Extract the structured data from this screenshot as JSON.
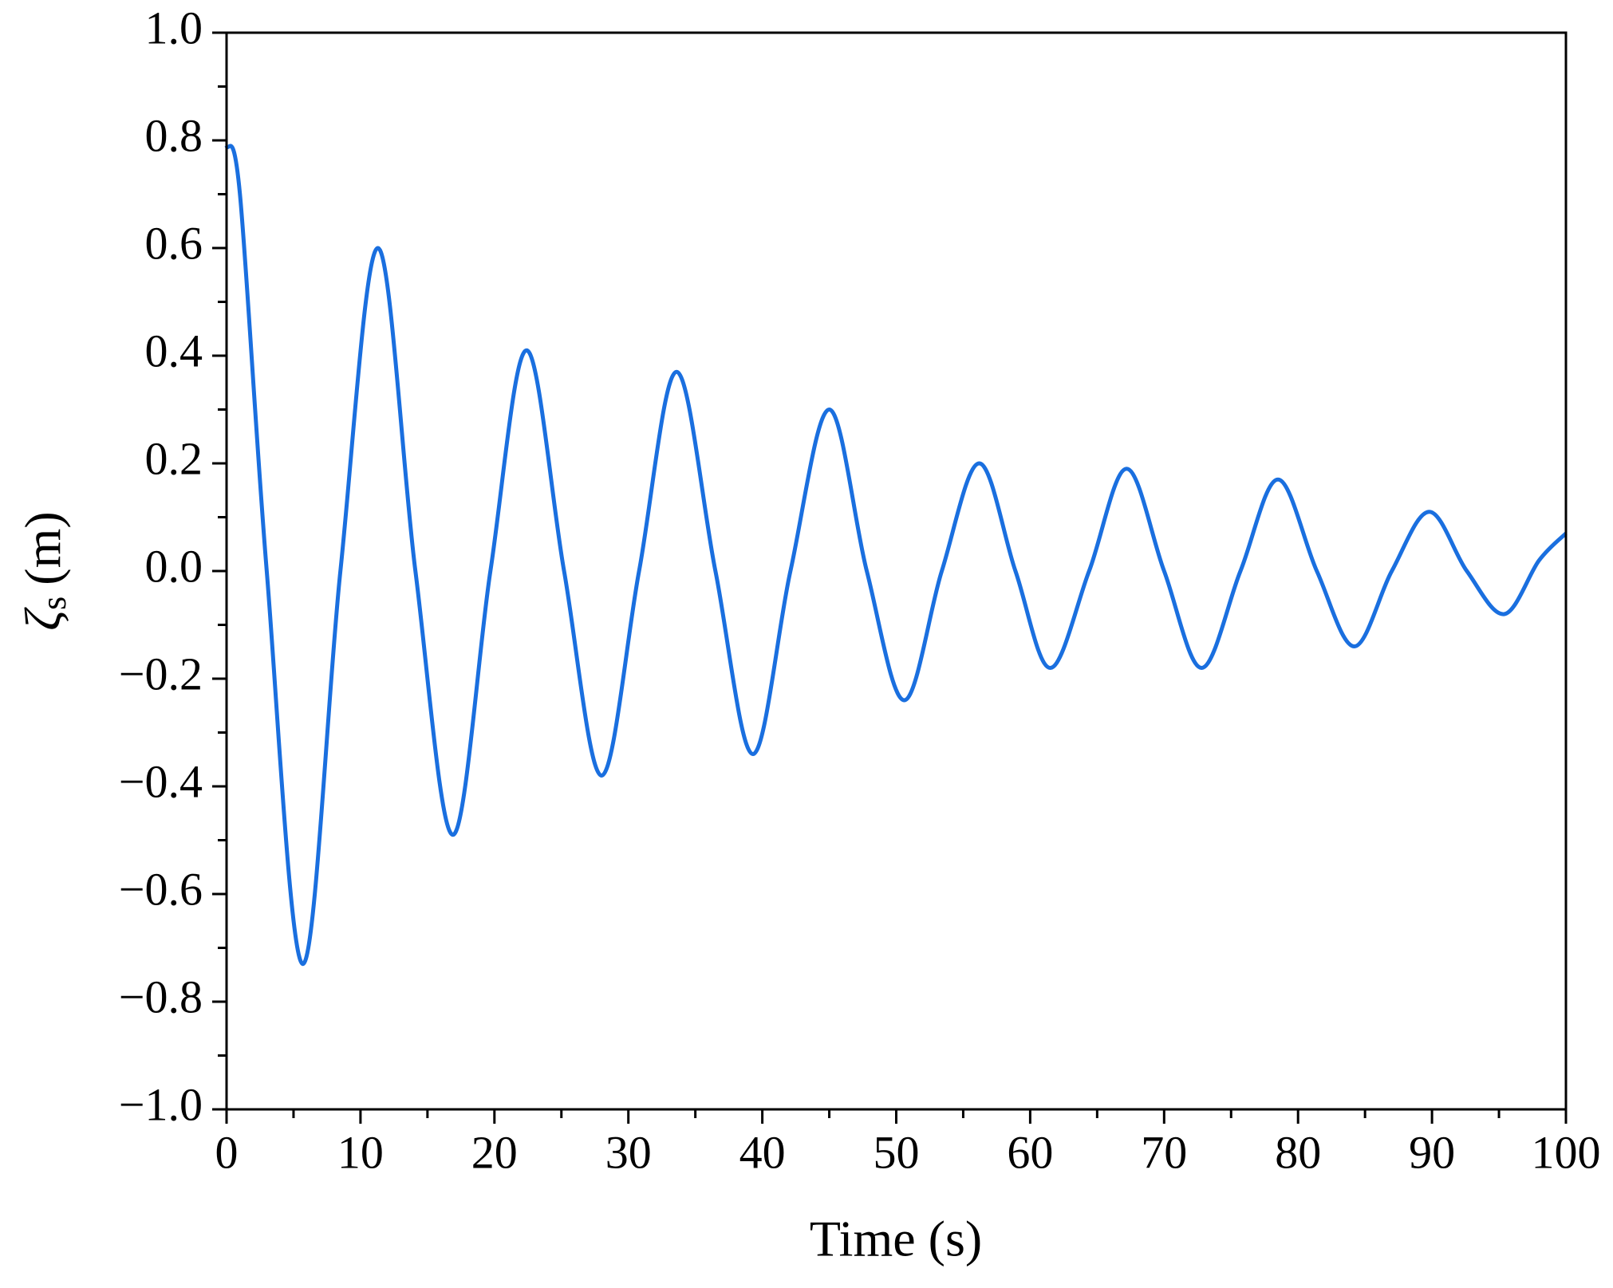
{
  "chart_data": {
    "type": "line",
    "xlabel": "Time (s)",
    "ylabel": {
      "symbol": "ζ",
      "subscript": "s",
      "unit": "(m)"
    },
    "xlim": [
      0,
      100
    ],
    "xticks": [
      0,
      10,
      20,
      30,
      40,
      50,
      60,
      70,
      80,
      90,
      100
    ],
    "ylim": [
      -1.0,
      1.0
    ],
    "yticks": [
      {
        "value": -1.0,
        "label": "−1.0"
      },
      {
        "value": -0.8,
        "label": "−0.8"
      },
      {
        "value": -0.6,
        "label": "−0.6"
      },
      {
        "value": -0.4,
        "label": "−0.4"
      },
      {
        "value": -0.2,
        "label": "−0.2"
      },
      {
        "value": 0,
        "label": "0.0"
      },
      {
        "value": 0.2,
        "label": "0.2"
      },
      {
        "value": 0.4,
        "label": "0.4"
      },
      {
        "value": 0.6,
        "label": "0.6"
      },
      {
        "value": 0.8,
        "label": "0.8"
      },
      {
        "value": 1.0,
        "label": "1.0"
      }
    ],
    "x": [
      0,
      1,
      3.0,
      5.7,
      8.5,
      11.3,
      14.1,
      16.9,
      19.7,
      22.4,
      25.2,
      28.0,
      30.8,
      33.6,
      36.5,
      39.3,
      42.1,
      45.0,
      47.8,
      50.6,
      53.4,
      56.2,
      58.9,
      61.5,
      64.4,
      67.2,
      70.0,
      72.8,
      75.7,
      78.5,
      81.4,
      84.2,
      87.0,
      89.8,
      92.6,
      95.4,
      98.0,
      100
    ],
    "series": [
      {
        "color": "#1a6fdf",
        "values": [
          0.79,
          0.7,
          0.0,
          -0.73,
          0.0,
          0.6,
          0.0,
          -0.49,
          0.0,
          0.41,
          0.0,
          -0.38,
          0.0,
          0.37,
          0.0,
          -0.34,
          0.0,
          0.3,
          0.0,
          -0.24,
          0.0,
          0.2,
          0.0,
          -0.18,
          0.0,
          0.19,
          0.0,
          -0.18,
          0.0,
          0.17,
          0.0,
          -0.14,
          0.0,
          0.11,
          0.0,
          -0.08,
          0.02,
          0.07
        ]
      }
    ]
  }
}
